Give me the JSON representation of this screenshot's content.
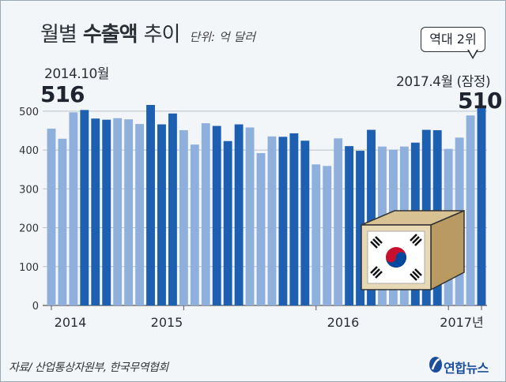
{
  "header": {
    "title_plain1": "월별",
    "title_bold": "수출액",
    "title_plain2": "추이",
    "unit": "단위: 억 달러"
  },
  "annotations": {
    "first_label": "2014.10월",
    "first_value": "516",
    "latest_label": "2017.4월 (잠정)",
    "latest_value": "510",
    "rank_bubble": "역대 2위"
  },
  "footer": {
    "source": "자료/ 산업통상자원부, 한국무역협회",
    "logo_text": "연합뉴스"
  },
  "colors": {
    "bar_light": "#8fb0dc",
    "bar_dark": "#1d5fb0",
    "background": "#f3f6f9",
    "grid": "#b9c2cc"
  },
  "chart_data": {
    "type": "bar",
    "unit": "억 달러",
    "ylim": [
      0,
      520
    ],
    "yticks": [
      0,
      100,
      200,
      300,
      400,
      500
    ],
    "grid": true,
    "year_labels": [
      "2014",
      "2015",
      "2016",
      "2017년"
    ],
    "categories": [
      "2014.1",
      "2014.2",
      "2014.3",
      "2014.4",
      "2014.5",
      "2014.6",
      "2014.7",
      "2014.8",
      "2014.9",
      "2014.10",
      "2014.11",
      "2014.12",
      "2015.1",
      "2015.2",
      "2015.3",
      "2015.4",
      "2015.5",
      "2015.6",
      "2015.7",
      "2015.8",
      "2015.9",
      "2015.10",
      "2015.11",
      "2015.12",
      "2016.1",
      "2016.2",
      "2016.3",
      "2016.4",
      "2016.5",
      "2016.6",
      "2016.7",
      "2016.8",
      "2016.9",
      "2016.10",
      "2016.11",
      "2016.12",
      "2017.1",
      "2017.2",
      "2017.3",
      "2017.4"
    ],
    "values": [
      455,
      429,
      497,
      503,
      481,
      478,
      482,
      479,
      467,
      516,
      466,
      494,
      451,
      414,
      469,
      462,
      423,
      466,
      458,
      392,
      435,
      434,
      443,
      424,
      363,
      359,
      430,
      410,
      398,
      452,
      409,
      401,
      409,
      419,
      452,
      451,
      403,
      432,
      489,
      510
    ]
  }
}
